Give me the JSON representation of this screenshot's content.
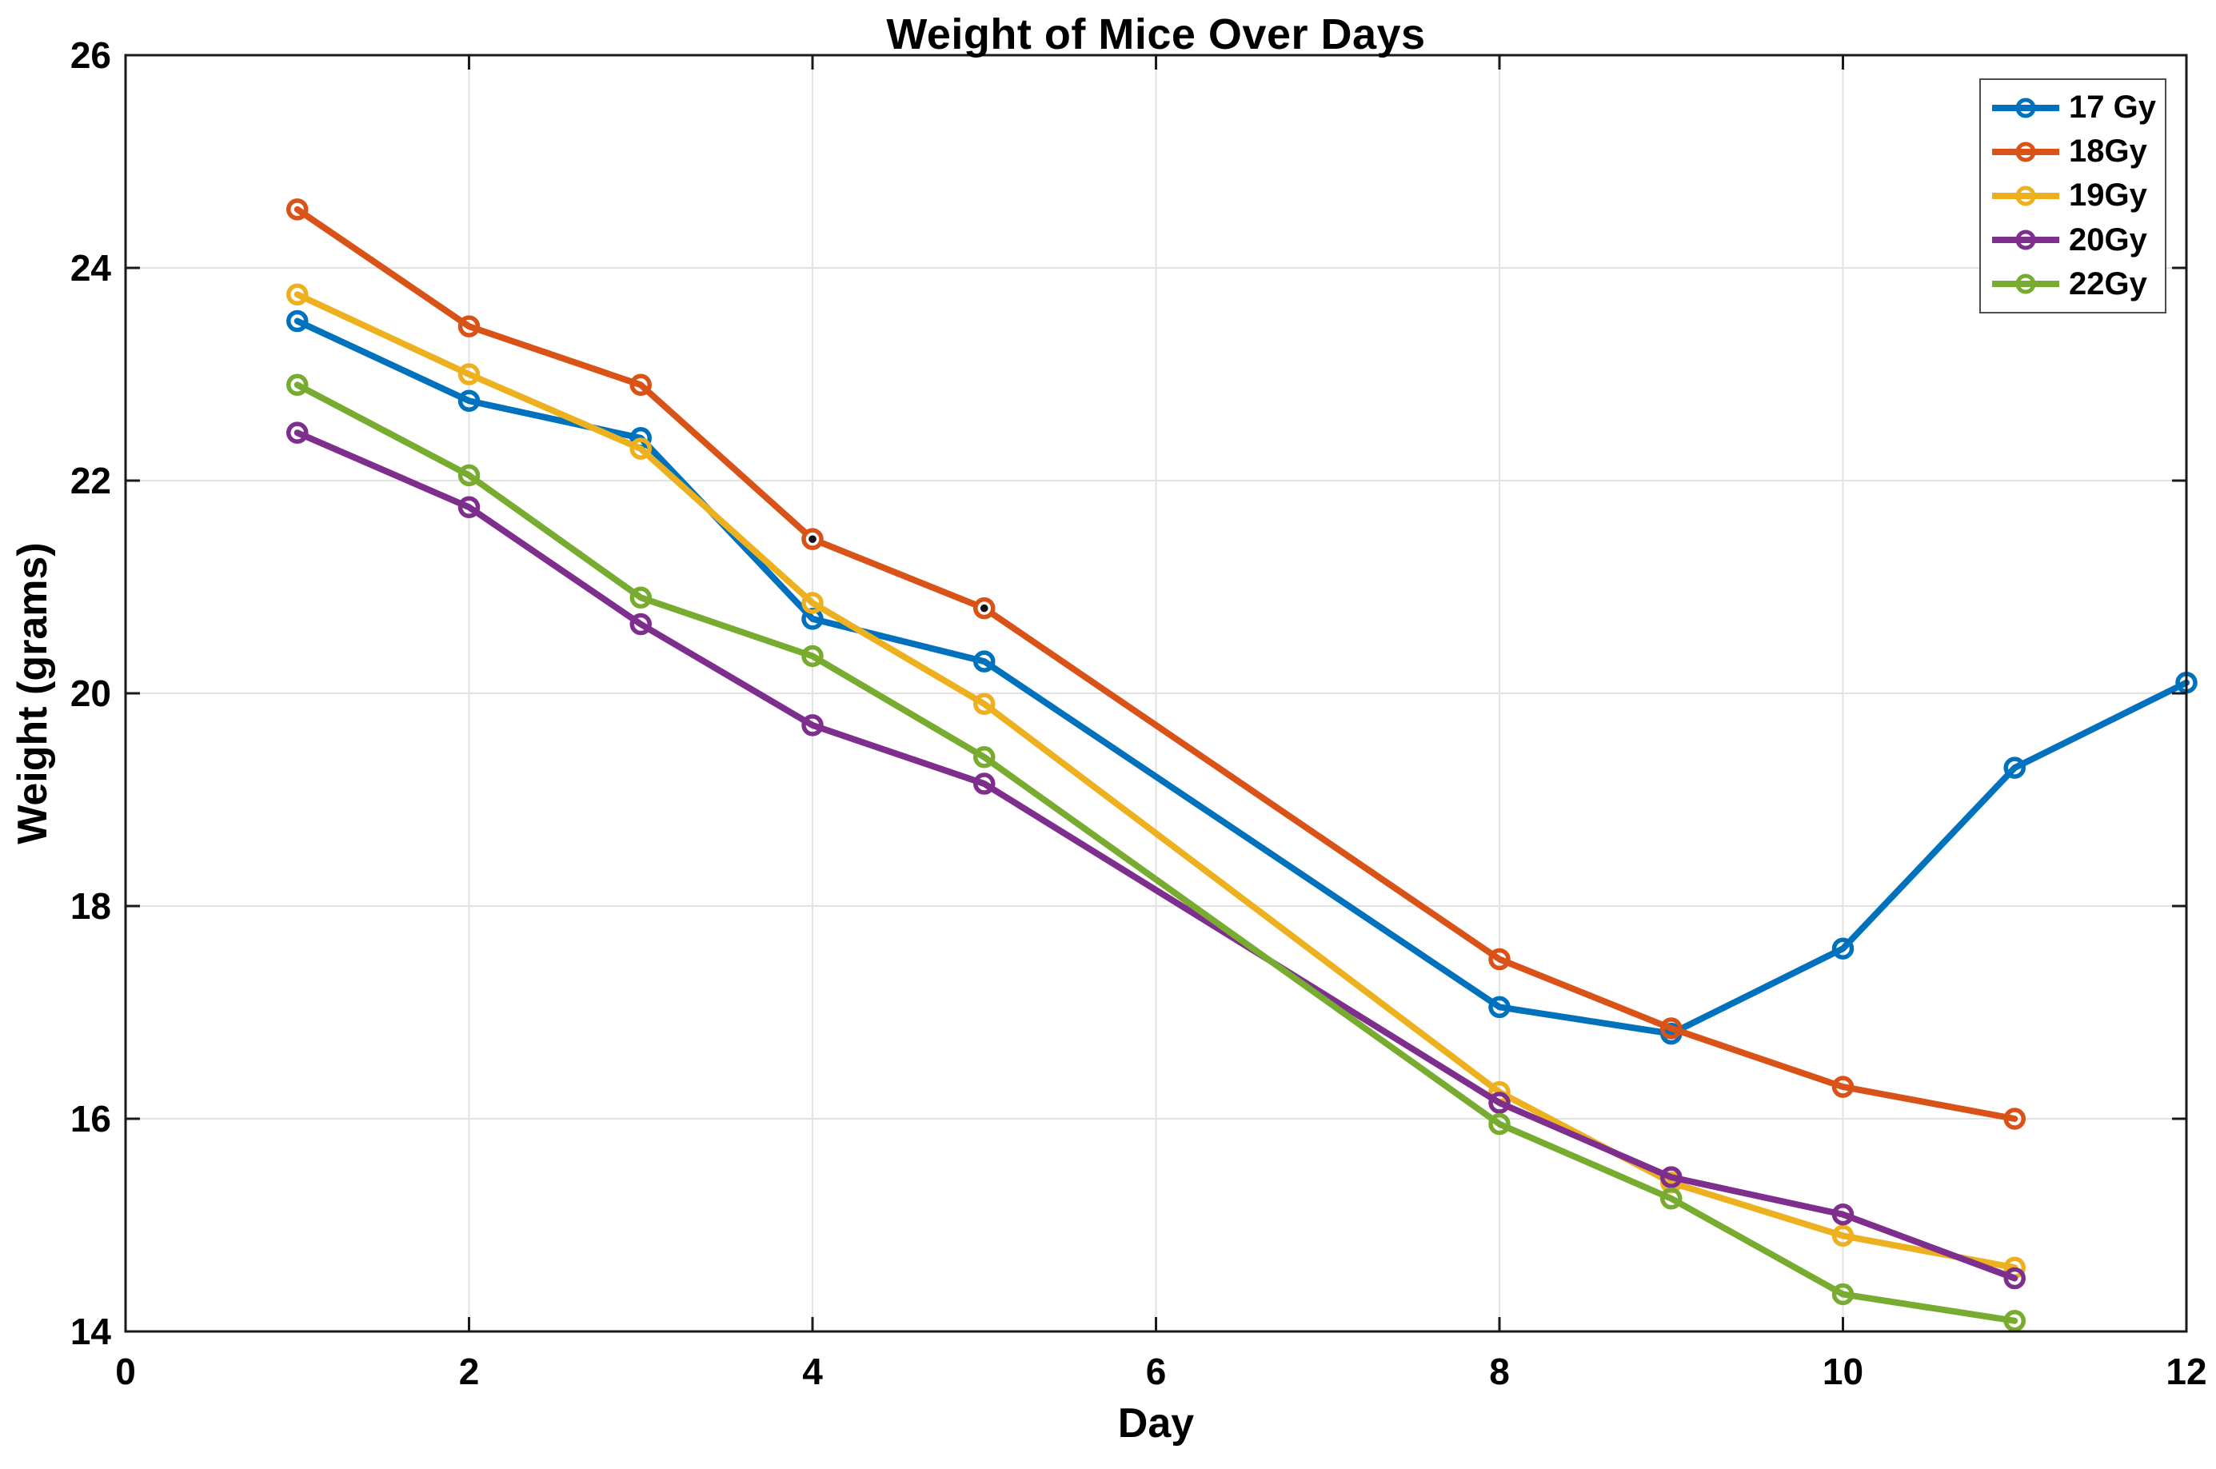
{
  "chart_data": {
    "type": "line",
    "title": "Weight of Mice Over Days",
    "xlabel": "Day",
    "ylabel": "Weight (grams)",
    "xlim": [
      0,
      12
    ],
    "ylim": [
      14,
      26
    ],
    "xticks": [
      0,
      2,
      4,
      6,
      8,
      10,
      12
    ],
    "yticks": [
      14,
      16,
      18,
      20,
      22,
      24,
      26
    ],
    "grid": true,
    "legend_position": "top-right",
    "series": [
      {
        "name": "17 Gy",
        "color": "#0072BD",
        "x": [
          1,
          2,
          3,
          4,
          5,
          8,
          9,
          10,
          11,
          12
        ],
        "y": [
          23.5,
          22.75,
          22.4,
          20.7,
          20.3,
          17.05,
          16.8,
          17.6,
          19.3,
          20.1
        ]
      },
      {
        "name": "18Gy",
        "color": "#D95319",
        "x": [
          1,
          2,
          3,
          4,
          5,
          8,
          9,
          10,
          11
        ],
        "y": [
          24.55,
          23.45,
          22.9,
          21.45,
          20.8,
          17.5,
          16.85,
          16.3,
          16.0
        ],
        "black_center_marker_days": [
          4,
          5
        ]
      },
      {
        "name": "19Gy",
        "color": "#EDB120",
        "x": [
          1,
          2,
          3,
          4,
          5,
          8,
          9,
          10,
          11
        ],
        "y": [
          23.75,
          23.0,
          22.3,
          20.85,
          19.9,
          16.25,
          15.4,
          14.9,
          14.6
        ]
      },
      {
        "name": "20Gy",
        "color": "#7E2F8E",
        "x": [
          1,
          2,
          3,
          4,
          5,
          8,
          9,
          10,
          11
        ],
        "y": [
          22.45,
          21.75,
          20.65,
          19.7,
          19.15,
          16.15,
          15.45,
          15.1,
          14.5
        ]
      },
      {
        "name": "22Gy",
        "color": "#77AC30",
        "x": [
          1,
          2,
          3,
          4,
          5,
          8,
          9,
          10,
          11
        ],
        "y": [
          22.9,
          22.05,
          20.9,
          20.35,
          19.4,
          15.95,
          15.25,
          14.35,
          14.1
        ]
      }
    ]
  },
  "colors": {
    "background": "#ffffff",
    "grid": "#e2e2e2",
    "axis": "#1a1a1a",
    "legend_border": "#4d4d4d",
    "marker_dot": "#111111"
  }
}
